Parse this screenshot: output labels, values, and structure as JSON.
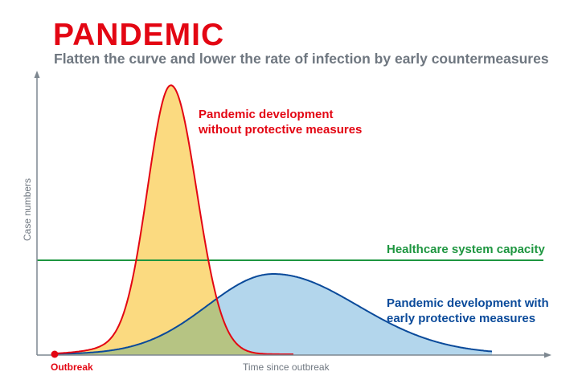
{
  "title": "PANDEMIC",
  "subtitle": "Flatten the curve and lower the rate of infection by early countermeasures",
  "labels": {
    "without_measures_1": "Pandemic development",
    "without_measures_2": "without protective measures",
    "capacity": "Healthcare system capacity",
    "with_measures_1": "Pandemic development with",
    "with_measures_2": "early protective measures",
    "outbreak": "Outbreak",
    "x_axis": "Time since outbreak",
    "y_axis": "Case numbers"
  },
  "colors": {
    "red": "#e30613",
    "yellow_fill": "#fbda80",
    "blue": "#0a4a9a",
    "blue_fill": "#b3d6ec",
    "overlap_fill": "#b6c483",
    "green": "#1e9640",
    "axis": "#7d8790"
  }
}
